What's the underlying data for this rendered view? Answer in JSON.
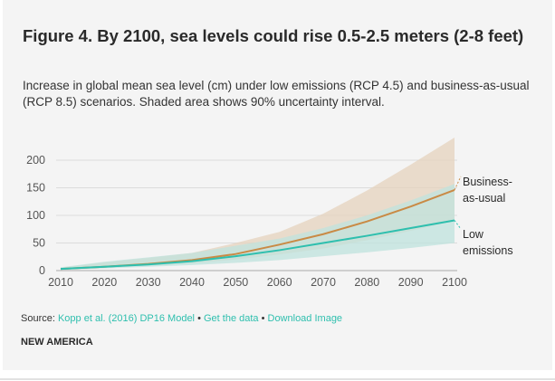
{
  "title": "Figure 4. By 2100, sea levels could rise 0.5-2.5 meters (2-8 feet)",
  "subtitle": "Increase in global mean sea level (cm) under low emissions (RCP 4.5) and business-as-usual (RCP 8.5) scenarios. Shaded area shows 90% uncertainty interval.",
  "source": {
    "prefix": "Source: ",
    "link": "Kopp et al. (2016) DP16 Model",
    "sep": " • ",
    "get_data": "Get the data",
    "download": "Download Image"
  },
  "brand": "NEW AMERICA",
  "chart_data": {
    "type": "area",
    "x": [
      2010,
      2020,
      2030,
      2040,
      2050,
      2060,
      2070,
      2080,
      2090,
      2100
    ],
    "xlim": [
      2010,
      2100
    ],
    "ylim": [
      0,
      240
    ],
    "yticks": [
      0,
      50,
      100,
      150,
      200
    ],
    "grid": true,
    "series": [
      {
        "name": "Business-as-usual",
        "color": "#c98a45",
        "band_color": "#e6d3bd",
        "values": [
          3,
          7,
          12,
          19,
          30,
          47,
          66,
          89,
          116,
          146
        ],
        "upper": [
          5,
          15,
          23,
          32,
          50,
          70,
          103,
          145,
          192,
          241
        ],
        "lower": [
          2,
          5,
          9,
          13,
          20,
          29,
          40,
          55,
          72,
          90
        ]
      },
      {
        "name": "Low emissions",
        "color": "#2ebfae",
        "band_color": "#bfe3dd",
        "values": [
          3,
          7,
          11,
          17,
          26,
          37,
          50,
          63,
          77,
          91
        ],
        "upper": [
          6,
          16,
          24,
          32,
          45,
          58,
          77,
          100,
          127,
          157
        ],
        "lower": [
          1,
          4,
          7,
          10,
          14,
          19,
          26,
          33,
          41,
          50
        ]
      }
    ],
    "labels": [
      [
        "Business-",
        "as-usual"
      ],
      [
        "Low",
        "emissions"
      ]
    ]
  }
}
